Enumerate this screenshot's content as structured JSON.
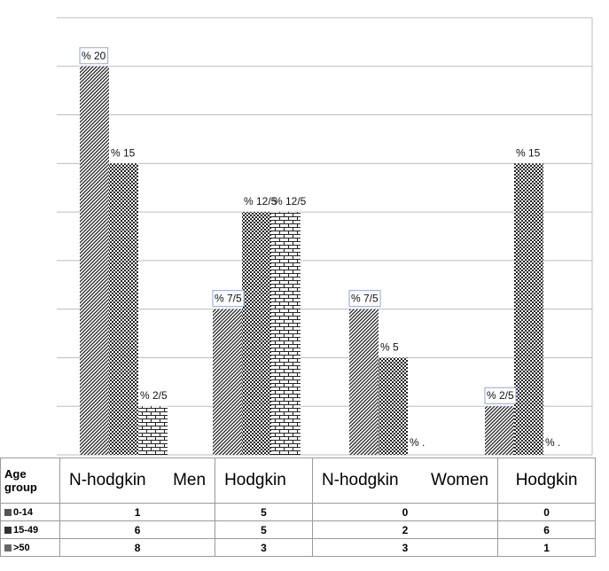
{
  "chart_data": {
    "type": "bar",
    "categories": [
      "N-hodgkin",
      "Hodgkin",
      "N-hodgkin",
      "Hodgkin"
    ],
    "groups": [
      "Men",
      "Women"
    ],
    "series": [
      {
        "name": "0-14",
        "values": [
          20,
          7.5,
          7.5,
          2.5
        ],
        "labels": [
          "% 20",
          "% 7/5",
          "% 7/5",
          "% 2/5"
        ],
        "counts": [
          "1",
          "5",
          "0",
          "0"
        ]
      },
      {
        "name": "15-49",
        "values": [
          15,
          12.5,
          5,
          15
        ],
        "labels": [
          "% 15",
          "% 12/5",
          "% 5",
          "% 15"
        ],
        "counts": [
          "6",
          "5",
          "2",
          "6"
        ]
      },
      {
        "name": ">50",
        "values": [
          2.5,
          12.5,
          0,
          0
        ],
        "labels": [
          "% 2/5",
          "% 12/5",
          "% .",
          "% ."
        ],
        "counts": [
          "8",
          "3",
          "3",
          "1"
        ]
      }
    ],
    "ylim": [
      0,
      22.5
    ],
    "grid": true,
    "table": {
      "row_header": "Age group",
      "header_cells": [
        "N-hodgkin",
        "Men",
        "Hodgkin",
        "N-hodgkin",
        "Women",
        "Hodgkin"
      ]
    }
  },
  "colors": {
    "grid": "#bdbdbd",
    "bar_fill": "#333333",
    "label_border": "#8ea6d6"
  }
}
